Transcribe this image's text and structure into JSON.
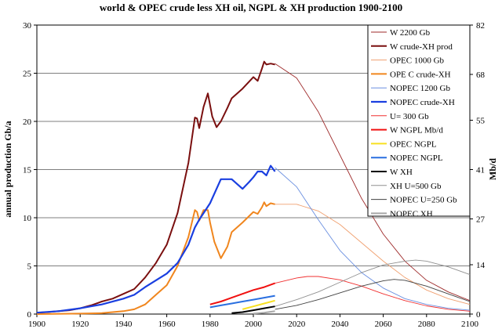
{
  "chart_data": {
    "type": "line",
    "title": "world  & OPEC crude less XH oil, NGPL & XH production 1900-2100",
    "ylabel": "annual production Gb/a",
    "y2label": "Mb/d",
    "xlim": [
      1900,
      2100
    ],
    "ylim": [
      0,
      30
    ],
    "y2lim": [
      0,
      82
    ],
    "x_ticks": [
      1900,
      1920,
      1940,
      1960,
      1980,
      2000,
      2020,
      2040,
      2060,
      2080,
      2100
    ],
    "y_ticks": [
      0,
      5,
      10,
      15,
      20,
      25,
      30
    ],
    "y2_ticks": [
      0,
      14,
      27,
      41,
      55,
      68,
      82
    ],
    "gridlines": "horizontal",
    "legend_position": "top-right",
    "series": [
      {
        "name": "W 2200 Gb",
        "color": "#9e2a2a",
        "width": 0.9,
        "x": [
          2010,
          2020,
          2030,
          2040,
          2050,
          2060,
          2070,
          2080,
          2090,
          2100
        ],
        "y": [
          26.0,
          24.5,
          21.0,
          16.5,
          12.0,
          8.3,
          5.5,
          3.5,
          2.3,
          1.4
        ]
      },
      {
        "name": "W  crude-XH prod",
        "color": "#7a0f0f",
        "width": 2,
        "x": [
          1900,
          1905,
          1910,
          1915,
          1920,
          1925,
          1930,
          1935,
          1940,
          1945,
          1950,
          1955,
          1960,
          1965,
          1970,
          1973,
          1974,
          1975,
          1977,
          1979,
          1981,
          1983,
          1985,
          1988,
          1990,
          1995,
          2000,
          2002,
          2004,
          2005,
          2006,
          2008,
          2010
        ],
        "y": [
          0.15,
          0.2,
          0.3,
          0.4,
          0.6,
          0.9,
          1.3,
          1.6,
          2.1,
          2.6,
          3.8,
          5.3,
          7.2,
          10.5,
          15.7,
          20.4,
          20.3,
          19.3,
          21.5,
          22.9,
          20.5,
          19.4,
          20.0,
          21.4,
          22.4,
          23.4,
          24.6,
          24.2,
          25.5,
          26.2,
          25.9,
          26.0,
          25.9
        ]
      },
      {
        "name": "OPEC 1000 Gb",
        "color": "#f0a070",
        "width": 0.9,
        "x": [
          2010,
          2020,
          2030,
          2040,
          2050,
          2060,
          2070,
          2080,
          2090,
          2100
        ],
        "y": [
          11.4,
          11.4,
          10.7,
          9.3,
          7.4,
          5.5,
          3.8,
          2.5,
          1.6,
          1.0
        ]
      },
      {
        "name": "OPE C  crude-XH",
        "color": "#f0861e",
        "width": 2,
        "x": [
          1900,
          1920,
          1930,
          1935,
          1940,
          1945,
          1950,
          1955,
          1960,
          1965,
          1970,
          1973,
          1974,
          1975,
          1977,
          1979,
          1980,
          1982,
          1985,
          1986,
          1988,
          1990,
          1995,
          2000,
          2002,
          2004,
          2005,
          2006,
          2008,
          2010
        ],
        "y": [
          0,
          0.05,
          0.1,
          0.2,
          0.3,
          0.5,
          1.0,
          2.0,
          3.0,
          5.0,
          8.0,
          10.8,
          10.6,
          9.7,
          10.8,
          10.8,
          9.5,
          7.5,
          5.8,
          6.2,
          7.0,
          8.5,
          9.5,
          10.6,
          10.4,
          11.1,
          11.6,
          11.2,
          11.5,
          11.4
        ]
      },
      {
        "name": "NOPEC 1200 Gb",
        "color": "#6a8fe0",
        "width": 0.9,
        "x": [
          2010,
          2020,
          2030,
          2040,
          2050,
          2060,
          2070,
          2080,
          2090,
          2100
        ],
        "y": [
          15.2,
          13.2,
          9.8,
          6.6,
          4.3,
          2.7,
          1.6,
          1.0,
          0.6,
          0.4
        ]
      },
      {
        "name": "NOPEC  crude-XH",
        "color": "#1a3fe0",
        "width": 2.2,
        "x": [
          1900,
          1910,
          1920,
          1930,
          1940,
          1945,
          1950,
          1955,
          1960,
          1965,
          1970,
          1973,
          1975,
          1980,
          1985,
          1990,
          1992,
          1995,
          1998,
          2000,
          2002,
          2004,
          2006,
          2008,
          2010
        ],
        "y": [
          0.15,
          0.3,
          0.6,
          1.0,
          1.6,
          2.0,
          2.8,
          3.5,
          4.2,
          5.3,
          7.2,
          9.0,
          9.8,
          11.5,
          14.0,
          14.0,
          13.6,
          13.0,
          13.7,
          14.2,
          14.8,
          14.8,
          14.4,
          15.4,
          14.8
        ]
      },
      {
        "name": "U= 300 Gb",
        "color": "#f03030",
        "width": 0.9,
        "x": [
          2010,
          2020,
          2025,
          2030,
          2040,
          2050,
          2060,
          2070,
          2080,
          2090,
          2100
        ],
        "y": [
          3.2,
          3.75,
          3.9,
          3.9,
          3.55,
          2.9,
          2.1,
          1.4,
          0.85,
          0.5,
          0.3
        ]
      },
      {
        "name": "W NGPL Mb/d",
        "color": "#f01010",
        "width": 2,
        "x": [
          1980,
          1985,
          1990,
          1995,
          2000,
          2005,
          2010
        ],
        "y": [
          1.0,
          1.3,
          1.7,
          2.1,
          2.5,
          2.8,
          3.2
        ]
      },
      {
        "name": "OPEC NGPL",
        "color": "#f8e020",
        "width": 2,
        "x": [
          1995,
          2000,
          2005,
          2010
        ],
        "y": [
          0.5,
          0.8,
          1.1,
          1.4
        ]
      },
      {
        "name": "NOPEC NGPL",
        "color": "#2a6fe0",
        "width": 2,
        "x": [
          1980,
          1985,
          1990,
          1995,
          2000,
          2005,
          2010
        ],
        "y": [
          0.7,
          0.9,
          1.1,
          1.3,
          1.5,
          1.7,
          1.9
        ]
      },
      {
        "name": "W XH",
        "color": "#000000",
        "width": 2,
        "x": [
          1990,
          1995,
          2000,
          2005,
          2010
        ],
        "y": [
          0.1,
          0.2,
          0.4,
          0.6,
          0.8
        ]
      },
      {
        "name": "XH U=500 Gb",
        "color": "#909090",
        "width": 0.9,
        "x": [
          2010,
          2020,
          2030,
          2040,
          2050,
          2060,
          2070,
          2075,
          2080,
          2090,
          2100
        ],
        "y": [
          0.8,
          1.5,
          2.3,
          3.3,
          4.3,
          5.1,
          5.5,
          5.6,
          5.5,
          4.9,
          4.1
        ]
      },
      {
        "name": "NOPEC U=250 Gb",
        "color": "#404040",
        "width": 0.9,
        "x": [
          2010,
          2020,
          2030,
          2040,
          2050,
          2060,
          2065,
          2070,
          2080,
          2090,
          2100
        ],
        "y": [
          0.5,
          0.9,
          1.5,
          2.2,
          2.9,
          3.45,
          3.6,
          3.5,
          2.9,
          2.1,
          1.3
        ]
      },
      {
        "name": "NOPEC XH",
        "color": "#a8a8a8",
        "width": 2,
        "x": [
          2000,
          2005,
          2010
        ],
        "y": [
          0.05,
          0.15,
          0.3
        ]
      }
    ]
  }
}
